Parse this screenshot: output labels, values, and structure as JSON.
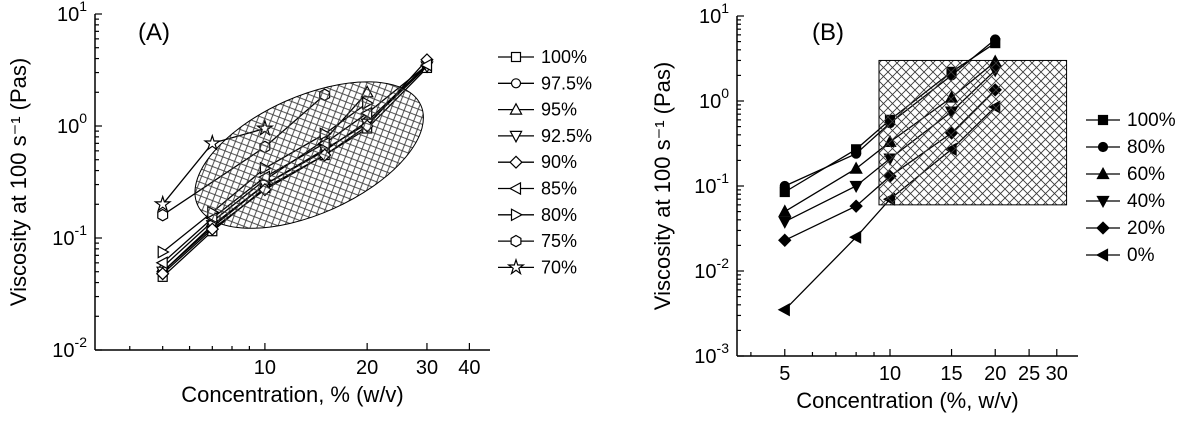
{
  "figure": {
    "background": "#ffffff",
    "line_color": "#000000",
    "axis_color": "#000000",
    "hatch_color": "#3a3a3a"
  },
  "chart_data": [
    {
      "type": "line",
      "panel_label": "(A)",
      "xlabel": "Concentration, % (w/v)",
      "ylabel": "Viscosity at 100 s⁻¹ (Pas)",
      "xscale": "log",
      "yscale": "log",
      "xlim": [
        3.16,
        46
      ],
      "ylim": [
        0.01,
        10
      ],
      "xticks": [
        10,
        20,
        30,
        40
      ],
      "yticks": [
        0.01,
        0.1,
        1,
        10
      ],
      "grid": false,
      "legend_position": "right-outside",
      "series": [
        {
          "name": "100%",
          "marker": "square",
          "fill": "open",
          "x": [
            5,
            7,
            10,
            15,
            20,
            30
          ],
          "y": [
            0.045,
            0.115,
            0.28,
            0.55,
            0.95,
            3.3
          ]
        },
        {
          "name": "97.5%",
          "marker": "circle",
          "fill": "open",
          "x": [
            5,
            7,
            10,
            15,
            20,
            30
          ],
          "y": [
            0.05,
            0.125,
            0.3,
            0.6,
            1.1,
            3.5
          ]
        },
        {
          "name": "95%",
          "marker": "triangle-up",
          "fill": "open",
          "x": [
            5,
            7,
            10,
            15,
            20
          ],
          "y": [
            0.055,
            0.14,
            0.33,
            0.75,
            2.0
          ]
        },
        {
          "name": "92.5%",
          "marker": "triangle-down",
          "fill": "open",
          "x": [
            5,
            7,
            10,
            15,
            20,
            30
          ],
          "y": [
            0.05,
            0.13,
            0.3,
            0.62,
            1.05,
            3.4
          ]
        },
        {
          "name": "90%",
          "marker": "diamond",
          "fill": "open",
          "x": [
            5,
            7,
            10,
            15,
            20,
            30
          ],
          "y": [
            0.048,
            0.12,
            0.27,
            0.55,
            1.0,
            3.9
          ]
        },
        {
          "name": "85%",
          "marker": "triangle-left",
          "fill": "open",
          "x": [
            5,
            7,
            10,
            15,
            20,
            30
          ],
          "y": [
            0.06,
            0.15,
            0.35,
            0.7,
            1.3,
            3.5
          ]
        },
        {
          "name": "80%",
          "marker": "triangle-right",
          "fill": "open",
          "x": [
            5,
            7,
            10,
            15,
            20
          ],
          "y": [
            0.075,
            0.17,
            0.42,
            0.85,
            1.6
          ]
        },
        {
          "name": "75%",
          "marker": "hexagon",
          "fill": "open",
          "x": [
            5,
            10,
            15
          ],
          "y": [
            0.16,
            0.65,
            1.9
          ]
        },
        {
          "name": "70%",
          "marker": "star",
          "fill": "open",
          "x": [
            5,
            7,
            10
          ],
          "y": [
            0.2,
            0.7,
            0.95
          ]
        }
      ],
      "annotation": {
        "shape": "ellipse",
        "hatch": "cross",
        "center_x": 13.5,
        "center_y": 0.55,
        "width_decades": 0.72,
        "height_decades": 1.05,
        "rotate_deg": -24
      }
    },
    {
      "type": "line",
      "panel_label": "(B)",
      "xlabel": "Concentration (%, w/v)",
      "ylabel": "Viscosity at 100 s⁻¹ (Pas)",
      "xscale": "log",
      "yscale": "log",
      "xlim": [
        3.65,
        34.5
      ],
      "ylim": [
        0.001,
        10
      ],
      "xticks": [
        5,
        10,
        15,
        20,
        25,
        30
      ],
      "yticks": [
        0.001,
        0.01,
        0.1,
        1,
        10
      ],
      "grid": false,
      "legend_position": "right-outside",
      "series": [
        {
          "name": "100%",
          "marker": "square",
          "fill": "solid",
          "x": [
            5,
            8,
            10,
            15,
            20
          ],
          "y": [
            0.085,
            0.27,
            0.6,
            2.2,
            4.8
          ]
        },
        {
          "name": "80%",
          "marker": "circle",
          "fill": "solid",
          "x": [
            5,
            8,
            10,
            15,
            20
          ],
          "y": [
            0.1,
            0.24,
            0.55,
            2.0,
            5.3
          ]
        },
        {
          "name": "60%",
          "marker": "triangle-up",
          "fill": "solid",
          "x": [
            5,
            8,
            10,
            15,
            20
          ],
          "y": [
            0.05,
            0.16,
            0.33,
            1.1,
            2.9
          ]
        },
        {
          "name": "40%",
          "marker": "triangle-down",
          "fill": "solid",
          "x": [
            5,
            8,
            10,
            15,
            20
          ],
          "y": [
            0.038,
            0.1,
            0.21,
            0.75,
            2.3
          ]
        },
        {
          "name": "20%",
          "marker": "diamond",
          "fill": "solid",
          "x": [
            5,
            8,
            10,
            15,
            20
          ],
          "y": [
            0.023,
            0.058,
            0.13,
            0.42,
            1.35
          ]
        },
        {
          "name": "0%",
          "marker": "triangle-left",
          "fill": "solid",
          "x": [
            5,
            8,
            10,
            15,
            20
          ],
          "y": [
            0.0035,
            0.025,
            0.07,
            0.27,
            0.85
          ]
        }
      ],
      "annotation": {
        "shape": "rect",
        "hatch": "cross",
        "x0": 9.3,
        "x1": 32,
        "y0": 0.06,
        "y1": 3.0
      }
    }
  ]
}
